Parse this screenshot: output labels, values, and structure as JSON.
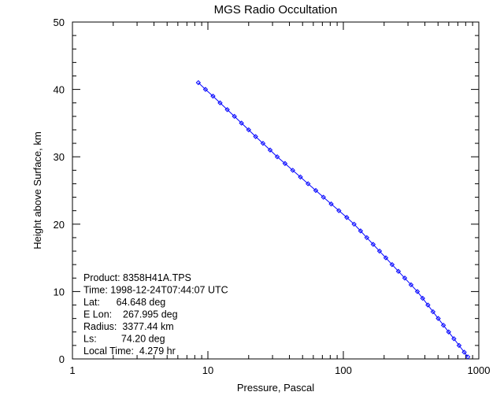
{
  "chart_data": {
    "type": "line",
    "title": "MGS Radio Occultation",
    "xlabel": "Pressure, Pascal",
    "ylabel": "Height above Surface, km",
    "xscale": "log",
    "xlim": [
      1,
      1000
    ],
    "ylim": [
      0,
      50
    ],
    "xticks": [
      "1",
      "10",
      "100",
      "1000"
    ],
    "yticks": [
      "0",
      "10",
      "20",
      "30",
      "40",
      "50"
    ],
    "grid": false,
    "series_color": "#0000ff",
    "marker": "diamond",
    "x": [
      830,
      781,
      715,
      655,
      599,
      548,
      502,
      459,
      421,
      385,
      352,
      316,
      284,
      255,
      229,
      206,
      185,
      166,
      149,
      134,
      120,
      106,
      92.7,
      81.3,
      71.3,
      62.6,
      54.9,
      48.2,
      42.3,
      37.1,
      32.5,
      28.8,
      25.5,
      22.5,
      20.0,
      17.7,
      15.7,
      13.9,
      12.3,
      10.9,
      9.6,
      8.5
    ],
    "y": [
      0.3,
      1,
      2,
      3,
      4,
      5,
      6,
      7,
      8,
      9,
      10,
      11,
      12,
      13,
      14,
      15,
      16,
      17,
      18,
      19,
      20,
      21,
      22,
      23,
      24,
      25,
      26,
      27,
      28,
      29,
      30,
      31,
      32,
      33,
      34,
      35,
      36,
      37,
      38,
      39,
      40,
      41
    ],
    "annotations": [
      "Product: 8358H41A.TPS",
      "Time: 1998-12-24T07:44:07 UTC",
      "Lat:      64.648 deg",
      "E Lon:    267.995 deg",
      "Radius:  3377.44 km",
      "Ls:         74.20 deg",
      "Local Time:  4.279 hr"
    ]
  }
}
